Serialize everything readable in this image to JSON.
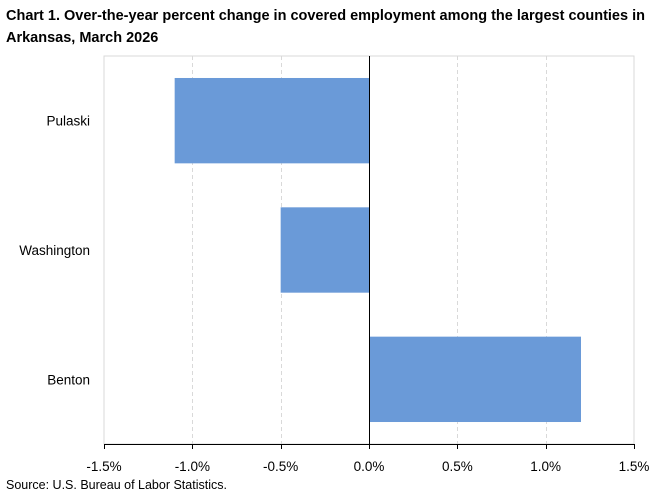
{
  "chart_data": {
    "type": "bar",
    "orientation": "horizontal",
    "title": "Chart 1. Over-the-year percent change in covered employment among the largest counties in Arkansas, March 2026",
    "categories": [
      "Pulaski",
      "Washington",
      "Benton"
    ],
    "values": [
      -1.1,
      -0.5,
      1.2
    ],
    "value_unit": "percent",
    "xlim": [
      -1.5,
      1.5
    ],
    "x_ticks": [
      -1.5,
      -1.0,
      -0.5,
      0.0,
      0.5,
      1.0,
      1.5
    ],
    "x_tick_labels": [
      "-1.5%",
      "-1.0%",
      "-0.5%",
      "0.0%",
      "0.5%",
      "1.0%",
      "1.5%"
    ],
    "xlabel": "",
    "ylabel": "",
    "grid": "vertical dashed",
    "legend": "none",
    "bar_color": "#6a9ad8",
    "source": "Source: U.S. Bureau of Labor Statistics."
  }
}
